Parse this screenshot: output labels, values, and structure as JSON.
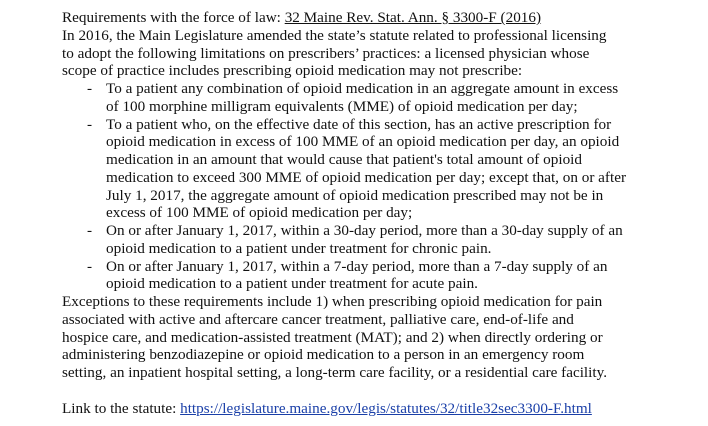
{
  "heading": {
    "label": "Requirements with the force of law:",
    "citation": "32 Maine Rev. Stat. Ann. § 3300-F (2016)"
  },
  "intro_lines": [
    "In 2016, the Main Legislature amended the state’s statute related to professional licensing",
    "to adopt the following limitations on prescribers’ practices: a licensed physician whose",
    "scope of practice includes prescribing opioid medication may not prescribe:"
  ],
  "bullets": [
    {
      "marker": "-",
      "lines": [
        "To a patient any combination of opioid medication in an aggregate amount in excess",
        "of 100 morphine milligram equivalents (MME) of opioid medication per day;"
      ]
    },
    {
      "marker": "-",
      "lines": [
        "To a patient who, on the effective date of this section, has an active prescription for",
        "opioid medication in excess of 100 MME of an opioid medication per day, an opioid",
        "medication in an amount that would cause that patient's total amount of opioid",
        "medication to exceed 300 MME of opioid medication per day; except that, on or after",
        "July 1, 2017, the aggregate amount of opioid medication prescribed may not be in",
        "excess of 100 MME of opioid medication per day;"
      ]
    },
    {
      "marker": "-",
      "lines": [
        "On or after January 1, 2017, within a 30-day period, more than a 30-day supply of an",
        "opioid medication to a patient under treatment for chronic pain."
      ]
    },
    {
      "marker": "-",
      "lines": [
        "On or after January 1, 2017, within a 7-day period, more than a 7-day supply of an",
        "opioid medication to a patient under treatment for acute pain."
      ]
    }
  ],
  "exceptions_lines": [
    "Exceptions to these requirements include 1) when prescribing opioid medication for pain",
    "associated with active and aftercare cancer treatment, palliative care, end-of-life and",
    "hospice care, and medication-assisted treatment (MAT); and 2) when directly ordering or",
    "administering benzodiazepine or opioid medication to a person in an emergency room",
    "setting, an inpatient hospital setting, a long-term care facility, or a residential care facility."
  ],
  "link": {
    "label": "Link to the statute:",
    "url": "https://legislature.maine.gov/legis/statutes/32/title32sec3300-F.html"
  }
}
